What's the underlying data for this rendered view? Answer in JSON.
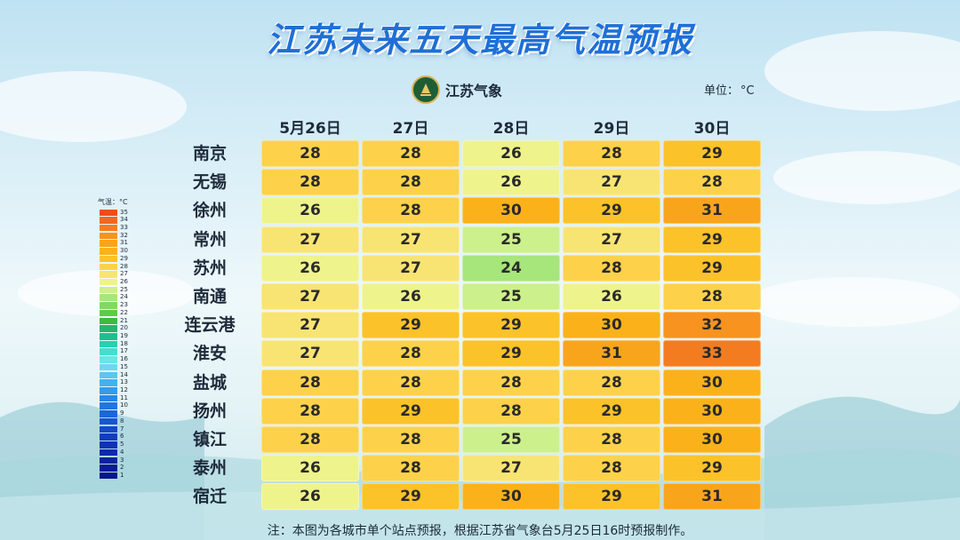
{
  "title": "江苏未来五天最高气温预报",
  "logo_text": "江苏气象",
  "unit": {
    "label": "单位：",
    "value": "°C"
  },
  "days": [
    "5月26日",
    "27日",
    "28日",
    "29日",
    "30日"
  ],
  "rows": [
    {
      "city": "南京",
      "temps": [
        28,
        28,
        26,
        28,
        29
      ]
    },
    {
      "city": "无锡",
      "temps": [
        28,
        28,
        26,
        27,
        28
      ]
    },
    {
      "city": "徐州",
      "temps": [
        26,
        28,
        30,
        29,
        31
      ]
    },
    {
      "city": "常州",
      "temps": [
        27,
        27,
        25,
        27,
        29
      ]
    },
    {
      "city": "苏州",
      "temps": [
        26,
        27,
        24,
        28,
        29
      ]
    },
    {
      "city": "南通",
      "temps": [
        27,
        26,
        25,
        26,
        28
      ]
    },
    {
      "city": "连云港",
      "temps": [
        27,
        29,
        29,
        30,
        32
      ]
    },
    {
      "city": "淮安",
      "temps": [
        27,
        28,
        29,
        31,
        33
      ]
    },
    {
      "city": "盐城",
      "temps": [
        28,
        28,
        28,
        28,
        30
      ]
    },
    {
      "city": "扬州",
      "temps": [
        28,
        29,
        28,
        29,
        30
      ]
    },
    {
      "city": "镇江",
      "temps": [
        28,
        28,
        25,
        28,
        30
      ]
    },
    {
      "city": "泰州",
      "temps": [
        26,
        28,
        27,
        28,
        29
      ]
    },
    {
      "city": "宿迁",
      "temps": [
        26,
        29,
        30,
        29,
        31
      ]
    }
  ],
  "legend": {
    "title": "气温：°C",
    "stops": [
      {
        "label": "35",
        "color": "#ee4d1e"
      },
      {
        "label": "34",
        "color": "#f26722"
      },
      {
        "label": "33",
        "color": "#f47c20"
      },
      {
        "label": "32",
        "color": "#f7931e"
      },
      {
        "label": "31",
        "color": "#f9a51c"
      },
      {
        "label": "30",
        "color": "#fbb21a"
      },
      {
        "label": "29",
        "color": "#fcc229"
      },
      {
        "label": "28",
        "color": "#fdd24a"
      },
      {
        "label": "27",
        "color": "#f8e473"
      },
      {
        "label": "26",
        "color": "#eef38c"
      },
      {
        "label": "25",
        "color": "#ccf08b"
      },
      {
        "label": "24",
        "color": "#a7e67a"
      },
      {
        "label": "23",
        "color": "#80da5f"
      },
      {
        "label": "22",
        "color": "#5bcc47"
      },
      {
        "label": "21",
        "color": "#3cbc3d"
      },
      {
        "label": "20",
        "color": "#2ab36a"
      },
      {
        "label": "19",
        "color": "#1fbf8d"
      },
      {
        "label": "18",
        "color": "#29cfb0"
      },
      {
        "label": "17",
        "color": "#47dcd0"
      },
      {
        "label": "16",
        "color": "#6ae4e6"
      },
      {
        "label": "15",
        "color": "#6fd6f2"
      },
      {
        "label": "14",
        "color": "#5cc5f2"
      },
      {
        "label": "13",
        "color": "#45b0ef"
      },
      {
        "label": "12",
        "color": "#359bea"
      },
      {
        "label": "11",
        "color": "#2a87e4"
      },
      {
        "label": "10",
        "color": "#2176de"
      },
      {
        "label": "9",
        "color": "#1b66d8"
      },
      {
        "label": "8",
        "color": "#1757d0"
      },
      {
        "label": "7",
        "color": "#1449c8"
      },
      {
        "label": "6",
        "color": "#113dbf"
      },
      {
        "label": "5",
        "color": "#0f33b5"
      },
      {
        "label": "4",
        "color": "#0d2aab"
      },
      {
        "label": "3",
        "color": "#0b22a0"
      },
      {
        "label": "2",
        "color": "#091b95"
      },
      {
        "label": "1",
        "color": "#07158a"
      }
    ]
  },
  "footnote": "注：本图为各城市单个站点预报，根据江苏省气象台5月25日16时预报制作。"
}
